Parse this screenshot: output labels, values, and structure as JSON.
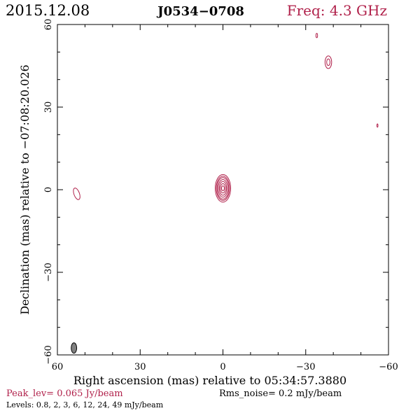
{
  "header": {
    "date": "2015.12.08",
    "source": "J0534−0708",
    "freq": "Freq: 4.3 GHz"
  },
  "footer": {
    "peak": "Peak_lev=  0.065 Jy/beam",
    "rms": "Rms_noise=  0.2 mJy/beam",
    "levels": "Levels: 0.8,   2,   3,   6,  12,  24,  49 mJy/beam"
  },
  "colors": {
    "contour": "#b0204a",
    "axis": "#000000",
    "beam": "#808080"
  },
  "chart_data": {
    "type": "contour",
    "title": "",
    "xlabel": "Right ascension (mas) relative to 05:34:57.3880",
    "ylabel": "Declination (mas) relative to −07:08:20.026",
    "xlim": [
      60,
      -60
    ],
    "ylim": [
      -60,
      60
    ],
    "xticks": [
      60,
      30,
      0,
      -30,
      -60
    ],
    "yticks": [
      -60,
      -30,
      0,
      30,
      60
    ],
    "xtick_labels": [
      "60",
      "30",
      "0",
      "−30",
      "−60"
    ],
    "ytick_labels": [
      "−60",
      "−30",
      "0",
      "30",
      "60"
    ],
    "contour_levels_mJy": [
      0.8,
      2,
      3,
      6,
      12,
      24,
      49
    ],
    "peak_Jy_per_beam": 0.065,
    "rms_mJy_per_beam": 0.2,
    "core": {
      "ra": 0.0,
      "dec": 0.5,
      "angle": 0,
      "contours": [
        {
          "level": 0.8,
          "rx": 2.8,
          "ry": 5.0
        },
        {
          "level": 2,
          "rx": 2.4,
          "ry": 4.4
        },
        {
          "level": 3,
          "rx": 2.1,
          "ry": 3.9
        },
        {
          "level": 6,
          "rx": 1.7,
          "ry": 3.2
        },
        {
          "level": 12,
          "rx": 1.3,
          "ry": 2.5
        },
        {
          "level": 24,
          "rx": 0.9,
          "ry": 1.7
        },
        {
          "level": 49,
          "rx": 0.5,
          "ry": 0.9
        }
      ]
    },
    "noise_contours": [
      {
        "ra": 53.0,
        "dec": -1.5,
        "rx": 1.0,
        "ry": 2.2,
        "angle": -20,
        "level": 0.8
      },
      {
        "ra": -38.2,
        "dec": 46.3,
        "rx": 1.2,
        "ry": 2.3,
        "angle": 0,
        "level": 0.8
      },
      {
        "ra": -38.2,
        "dec": 46.3,
        "rx": 0.6,
        "ry": 1.2,
        "angle": 0,
        "level": 2
      },
      {
        "ra": -34.0,
        "dec": 56.0,
        "rx": 0.3,
        "ry": 0.8,
        "angle": 0,
        "level": 0.8
      },
      {
        "ra": -56.0,
        "dec": 23.3,
        "rx": 0.2,
        "ry": 0.6,
        "angle": 0,
        "level": 0.8
      }
    ],
    "beam": {
      "ra": 54.0,
      "dec": -57.5,
      "rx": 1.0,
      "ry": 1.9,
      "angle": 0
    },
    "grid": false
  }
}
